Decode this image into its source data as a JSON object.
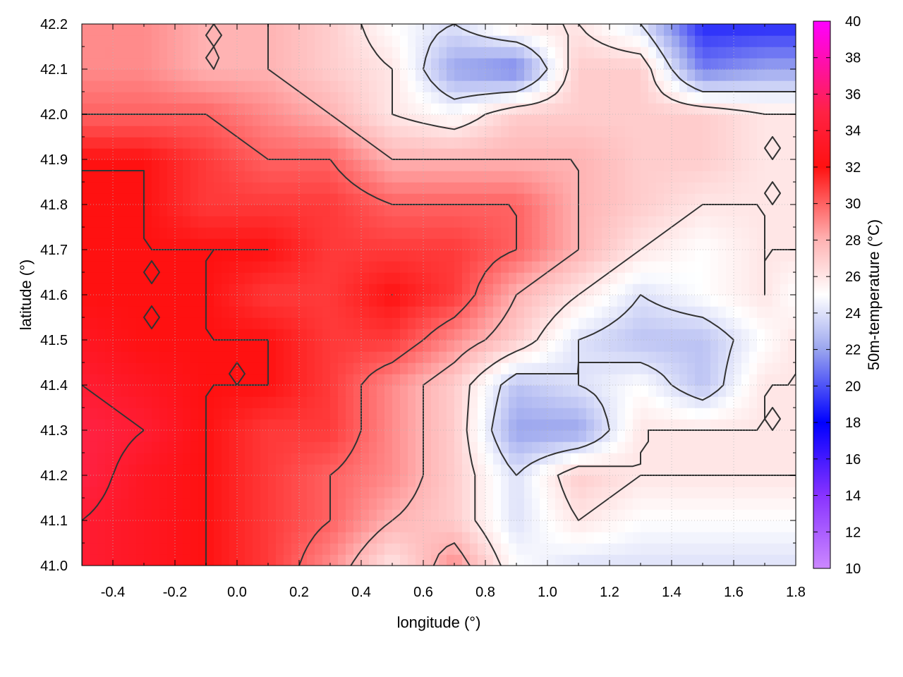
{
  "chart_data": {
    "type": "heatmap",
    "title": "",
    "xlabel": "longitude (°)",
    "ylabel": "latitude (°)",
    "colorbar_label": "50m-temperature (°C)",
    "xlim": [
      -0.5,
      1.8
    ],
    "ylim": [
      41.0,
      42.2
    ],
    "clim": [
      10,
      40
    ],
    "x_ticks": [
      -0.4,
      -0.2,
      0.0,
      0.2,
      0.4,
      0.6,
      0.8,
      1.0,
      1.2,
      1.4,
      1.6,
      1.8
    ],
    "y_ticks": [
      41.0,
      41.1,
      41.2,
      41.3,
      41.4,
      41.5,
      41.6,
      41.7,
      41.8,
      41.9,
      42.0,
      42.1,
      42.2
    ],
    "x_tick_labels": [
      "-0.4",
      "-0.2",
      "0.0",
      "0.2",
      "0.4",
      "0.6",
      "0.8",
      "1.0",
      "1.2",
      "1.4",
      "1.6",
      "1.8"
    ],
    "y_tick_labels": [
      "41.0",
      "41.1",
      "41.2",
      "41.3",
      "41.4",
      "41.5",
      "41.6",
      "41.7",
      "41.8",
      "41.9",
      "42.0",
      "42.1",
      "42.2"
    ],
    "colorbar_ticks": [
      10,
      12,
      14,
      16,
      18,
      20,
      22,
      24,
      26,
      28,
      30,
      32,
      34,
      36,
      38,
      40
    ],
    "colorbar_tick_labels": [
      "10",
      "12",
      "14",
      "16",
      "18",
      "20",
      "22",
      "24",
      "26",
      "28",
      "30",
      "32",
      "34",
      "36",
      "38",
      "40"
    ],
    "colormap": [
      {
        "v": 10,
        "color": "#cc88ff"
      },
      {
        "v": 14,
        "color": "#8833ff"
      },
      {
        "v": 18,
        "color": "#0000ff"
      },
      {
        "v": 22,
        "color": "#9aa5ee"
      },
      {
        "v": 25,
        "color": "#ffffff"
      },
      {
        "v": 28,
        "color": "#ffb3b3"
      },
      {
        "v": 32,
        "color": "#ff1111"
      },
      {
        "v": 35,
        "color": "#ff2244"
      },
      {
        "v": 40,
        "color": "#ff00ff"
      }
    ],
    "grid": true,
    "contour_color": "#333333",
    "field_approximation": {
      "grid_lon": [
        -0.5,
        -0.3,
        -0.1,
        0.1,
        0.3,
        0.5,
        0.7,
        0.9,
        1.1,
        1.3,
        1.5,
        1.7,
        1.8
      ],
      "grid_lat": [
        41.0,
        41.1,
        41.2,
        41.3,
        41.4,
        41.5,
        41.6,
        41.7,
        41.8,
        41.9,
        42.0,
        42.1,
        42.2
      ],
      "values": [
        [
          34,
          33,
          32,
          31,
          29,
          26,
          29,
          25,
          24,
          24,
          24,
          24,
          24
        ],
        [
          34,
          33,
          32,
          31,
          30,
          28,
          27,
          24,
          26,
          25,
          25,
          25,
          25
        ],
        [
          35,
          33,
          32,
          31,
          30,
          29,
          27,
          24,
          27,
          26,
          26,
          26,
          26
        ],
        [
          35,
          34,
          32,
          31,
          31,
          29,
          27,
          22,
          22,
          26,
          26,
          26,
          26
        ],
        [
          34,
          33,
          32,
          32,
          31,
          29,
          27,
          23,
          24,
          25,
          23,
          26,
          26
        ],
        [
          33,
          32,
          32,
          32,
          31,
          31,
          29,
          27,
          24,
          23,
          23,
          25,
          26
        ],
        [
          32,
          32,
          32,
          31,
          31,
          32,
          31,
          28,
          26,
          24,
          25,
          26,
          25
        ],
        [
          32,
          32,
          32,
          32,
          31,
          31,
          31,
          30,
          28,
          26,
          25,
          26,
          26
        ],
        [
          32,
          32,
          31,
          31,
          31,
          30,
          30,
          30,
          28,
          27,
          26,
          26,
          26
        ],
        [
          32,
          32,
          31,
          30,
          30,
          28,
          28,
          28,
          28,
          27,
          27,
          26,
          26
        ],
        [
          30,
          30,
          30,
          29,
          28,
          26,
          25,
          27,
          27,
          27,
          27,
          26,
          26
        ],
        [
          29,
          29,
          28,
          28,
          27,
          26,
          22,
          21,
          27,
          27,
          21,
          22,
          22
        ],
        [
          29,
          29,
          28,
          28,
          27,
          25,
          24,
          26,
          26,
          24,
          19,
          19,
          19
        ]
      ]
    }
  }
}
